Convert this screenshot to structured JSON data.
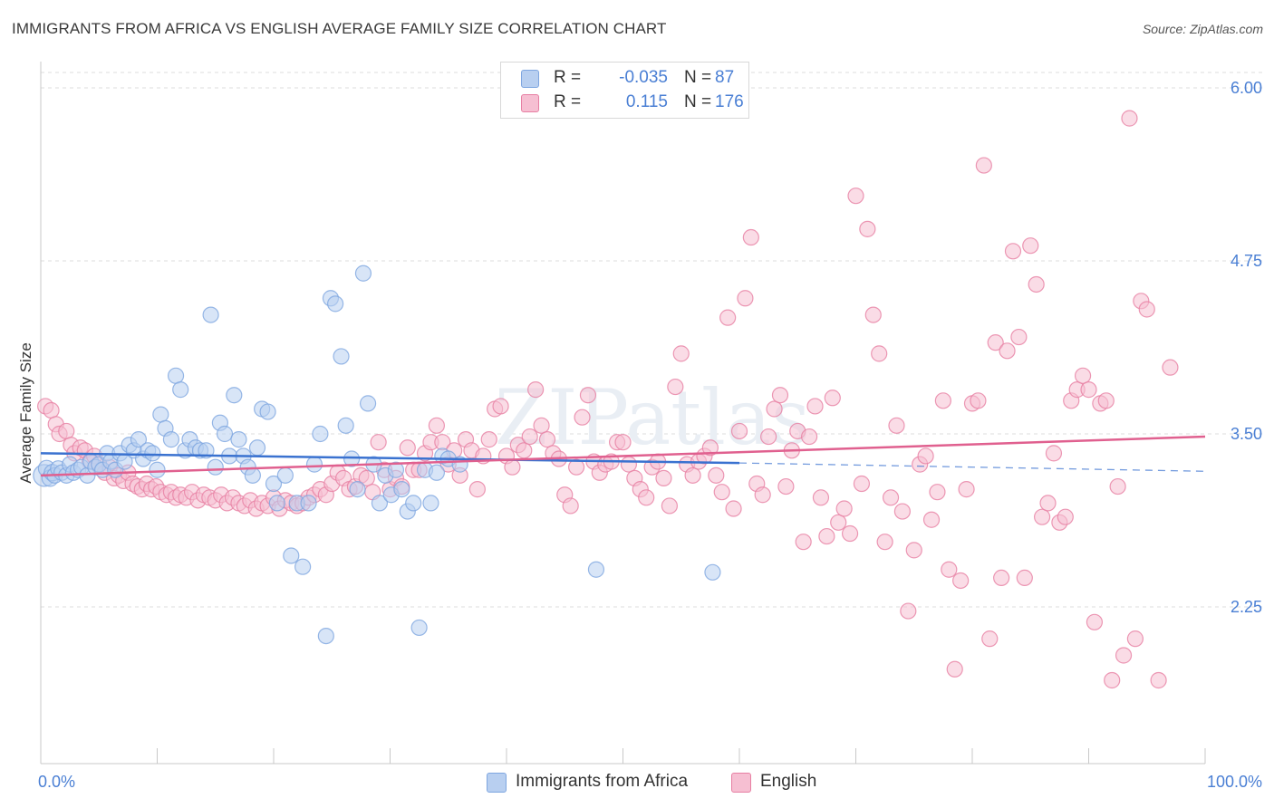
{
  "title": "IMMIGRANTS FROM AFRICA VS ENGLISH AVERAGE FAMILY SIZE CORRELATION CHART",
  "source": "Source: ZipAtlas.com",
  "watermark": "ZIPatlas",
  "legend": {
    "r_label": "R =",
    "n_label": "N =",
    "rows": [
      {
        "r": "-0.035",
        "n": "87"
      },
      {
        "r": "0.115",
        "n": "176"
      }
    ]
  },
  "chart_data": {
    "type": "scatter",
    "title": "IMMIGRANTS FROM AFRICA VS ENGLISH AVERAGE FAMILY SIZE CORRELATION CHART",
    "xlabel": "",
    "ylabel": "Average Family Size",
    "xlim": [
      0,
      100
    ],
    "ylim": [
      1.5,
      6.2
    ],
    "x_tick_labels": [
      "0.0%",
      "100.0%"
    ],
    "y_ticks": [
      2.25,
      3.5,
      4.75,
      6.0
    ],
    "y_tick_labels": [
      "2.25",
      "3.50",
      "4.75",
      "6.00"
    ],
    "grid": true,
    "legend_position": "top-center",
    "series": [
      {
        "name": "Immigrants from Africa",
        "color": "#7ea6e0",
        "fill": "#b8cff0",
        "trend": {
          "x0": 0,
          "y0": 3.36,
          "x1": 60,
          "y1": 3.29,
          "dash_x1": 100,
          "dash_y1": 3.23
        },
        "points": [
          [
            0.3,
            3.2
          ],
          [
            0.5,
            3.25
          ],
          [
            0.8,
            3.18
          ],
          [
            1.0,
            3.22
          ],
          [
            1.2,
            3.2
          ],
          [
            1.5,
            3.25
          ],
          [
            1.8,
            3.22
          ],
          [
            2.2,
            3.2
          ],
          [
            2.5,
            3.28
          ],
          [
            2.8,
            3.22
          ],
          [
            3.2,
            3.24
          ],
          [
            3.5,
            3.26
          ],
          [
            4.0,
            3.2
          ],
          [
            4.3,
            3.3
          ],
          [
            4.7,
            3.26
          ],
          [
            5.0,
            3.28
          ],
          [
            5.3,
            3.24
          ],
          [
            5.7,
            3.36
          ],
          [
            6.0,
            3.3
          ],
          [
            6.4,
            3.24
          ],
          [
            6.8,
            3.36
          ],
          [
            7.2,
            3.3
          ],
          [
            7.6,
            3.42
          ],
          [
            8.0,
            3.38
          ],
          [
            8.4,
            3.46
          ],
          [
            8.8,
            3.32
          ],
          [
            9.2,
            3.38
          ],
          [
            9.6,
            3.36
          ],
          [
            10.0,
            3.24
          ],
          [
            10.3,
            3.64
          ],
          [
            10.7,
            3.54
          ],
          [
            11.2,
            3.46
          ],
          [
            11.6,
            3.92
          ],
          [
            12.0,
            3.82
          ],
          [
            12.4,
            3.38
          ],
          [
            12.8,
            3.46
          ],
          [
            13.3,
            3.4
          ],
          [
            13.7,
            3.38
          ],
          [
            14.2,
            3.38
          ],
          [
            14.6,
            4.36
          ],
          [
            15.0,
            3.26
          ],
          [
            15.4,
            3.58
          ],
          [
            15.8,
            3.5
          ],
          [
            16.2,
            3.34
          ],
          [
            16.6,
            3.78
          ],
          [
            17.0,
            3.46
          ],
          [
            17.4,
            3.34
          ],
          [
            17.8,
            3.26
          ],
          [
            18.2,
            3.2
          ],
          [
            18.6,
            3.4
          ],
          [
            19.0,
            3.68
          ],
          [
            19.5,
            3.66
          ],
          [
            20.0,
            3.14
          ],
          [
            20.3,
            3.0
          ],
          [
            21.0,
            3.2
          ],
          [
            21.5,
            2.62
          ],
          [
            22.0,
            3.0
          ],
          [
            22.5,
            2.54
          ],
          [
            23.0,
            3.0
          ],
          [
            23.5,
            3.28
          ],
          [
            24.0,
            3.5
          ],
          [
            24.5,
            2.04
          ],
          [
            24.9,
            4.48
          ],
          [
            25.3,
            4.44
          ],
          [
            25.8,
            4.06
          ],
          [
            26.2,
            3.56
          ],
          [
            26.7,
            3.32
          ],
          [
            27.2,
            3.1
          ],
          [
            27.7,
            4.66
          ],
          [
            28.1,
            3.72
          ],
          [
            28.6,
            3.28
          ],
          [
            29.1,
            3.0
          ],
          [
            29.6,
            3.2
          ],
          [
            30.1,
            3.06
          ],
          [
            30.5,
            3.24
          ],
          [
            31.0,
            3.1
          ],
          [
            31.5,
            2.94
          ],
          [
            32.0,
            3.0
          ],
          [
            32.5,
            2.1
          ],
          [
            33.0,
            3.24
          ],
          [
            33.5,
            3.0
          ],
          [
            34.0,
            3.22
          ],
          [
            34.5,
            3.34
          ],
          [
            35.0,
            3.32
          ],
          [
            36.0,
            3.28
          ],
          [
            47.7,
            2.52
          ],
          [
            57.7,
            2.5
          ]
        ]
      },
      {
        "name": "English",
        "color": "#e77fa3",
        "fill": "#f6bfd2",
        "trend": {
          "x0": 0,
          "y0": 3.2,
          "x1": 100,
          "y1": 3.48
        },
        "points": [
          [
            0.4,
            3.7
          ],
          [
            0.9,
            3.67
          ],
          [
            1.3,
            3.57
          ],
          [
            1.6,
            3.5
          ],
          [
            2.2,
            3.52
          ],
          [
            2.6,
            3.42
          ],
          [
            2.9,
            3.36
          ],
          [
            3.4,
            3.4
          ],
          [
            3.8,
            3.38
          ],
          [
            4.2,
            3.3
          ],
          [
            4.6,
            3.34
          ],
          [
            5.0,
            3.28
          ],
          [
            5.5,
            3.22
          ],
          [
            5.9,
            3.26
          ],
          [
            6.3,
            3.18
          ],
          [
            6.7,
            3.2
          ],
          [
            7.1,
            3.16
          ],
          [
            7.5,
            3.22
          ],
          [
            7.9,
            3.14
          ],
          [
            8.3,
            3.12
          ],
          [
            8.7,
            3.1
          ],
          [
            9.1,
            3.14
          ],
          [
            9.5,
            3.1
          ],
          [
            9.9,
            3.12
          ],
          [
            10.3,
            3.08
          ],
          [
            10.8,
            3.06
          ],
          [
            11.2,
            3.08
          ],
          [
            11.6,
            3.04
          ],
          [
            12.0,
            3.06
          ],
          [
            12.5,
            3.04
          ],
          [
            13.0,
            3.08
          ],
          [
            13.5,
            3.02
          ],
          [
            14.0,
            3.06
          ],
          [
            14.5,
            3.04
          ],
          [
            15.0,
            3.02
          ],
          [
            15.5,
            3.06
          ],
          [
            16.0,
            3.0
          ],
          [
            16.5,
            3.04
          ],
          [
            17.0,
            3.0
          ],
          [
            17.5,
            2.98
          ],
          [
            18.0,
            3.02
          ],
          [
            18.5,
            2.96
          ],
          [
            19.0,
            3.0
          ],
          [
            19.5,
            2.98
          ],
          [
            20.0,
            3.04
          ],
          [
            20.5,
            2.96
          ],
          [
            21.0,
            3.02
          ],
          [
            21.5,
            3.0
          ],
          [
            22.0,
            2.98
          ],
          [
            22.5,
            3.0
          ],
          [
            23.0,
            3.04
          ],
          [
            23.5,
            3.06
          ],
          [
            24.0,
            3.1
          ],
          [
            24.5,
            3.06
          ],
          [
            25.0,
            3.14
          ],
          [
            25.5,
            3.22
          ],
          [
            26.0,
            3.18
          ],
          [
            26.5,
            3.1
          ],
          [
            27.0,
            3.12
          ],
          [
            27.5,
            3.2
          ],
          [
            28.0,
            3.18
          ],
          [
            28.5,
            3.08
          ],
          [
            29.0,
            3.44
          ],
          [
            29.5,
            3.24
          ],
          [
            30.0,
            3.1
          ],
          [
            30.5,
            3.18
          ],
          [
            31.0,
            3.12
          ],
          [
            31.5,
            3.4
          ],
          [
            32.0,
            3.24
          ],
          [
            32.5,
            3.24
          ],
          [
            33.0,
            3.36
          ],
          [
            33.5,
            3.44
          ],
          [
            34.0,
            3.56
          ],
          [
            34.5,
            3.44
          ],
          [
            35.0,
            3.28
          ],
          [
            35.5,
            3.38
          ],
          [
            36.0,
            3.2
          ],
          [
            36.5,
            3.46
          ],
          [
            37.0,
            3.38
          ],
          [
            37.5,
            3.1
          ],
          [
            38.0,
            3.34
          ],
          [
            38.5,
            3.46
          ],
          [
            39.0,
            3.68
          ],
          [
            39.5,
            3.7
          ],
          [
            40.0,
            3.34
          ],
          [
            40.5,
            3.26
          ],
          [
            41.0,
            3.42
          ],
          [
            41.5,
            3.38
          ],
          [
            42.0,
            3.48
          ],
          [
            42.5,
            3.82
          ],
          [
            43.0,
            3.56
          ],
          [
            43.5,
            3.46
          ],
          [
            44.0,
            3.36
          ],
          [
            44.5,
            3.32
          ],
          [
            45.0,
            3.06
          ],
          [
            45.5,
            2.98
          ],
          [
            46.0,
            3.26
          ],
          [
            46.5,
            3.62
          ],
          [
            47.0,
            3.78
          ],
          [
            47.5,
            3.3
          ],
          [
            48.0,
            3.22
          ],
          [
            48.5,
            3.28
          ],
          [
            49.0,
            3.3
          ],
          [
            49.5,
            3.44
          ],
          [
            50.0,
            3.44
          ],
          [
            50.5,
            3.28
          ],
          [
            51.0,
            3.18
          ],
          [
            51.5,
            3.1
          ],
          [
            52.0,
            3.04
          ],
          [
            52.5,
            3.26
          ],
          [
            53.0,
            3.3
          ],
          [
            53.5,
            3.18
          ],
          [
            54.0,
            2.98
          ],
          [
            54.5,
            3.84
          ],
          [
            55.0,
            4.08
          ],
          [
            55.5,
            3.28
          ],
          [
            56.0,
            3.2
          ],
          [
            56.5,
            3.3
          ],
          [
            57.0,
            3.34
          ],
          [
            57.5,
            3.4
          ],
          [
            58.0,
            3.2
          ],
          [
            58.5,
            3.08
          ],
          [
            59.0,
            4.34
          ],
          [
            59.5,
            2.96
          ],
          [
            60.0,
            3.52
          ],
          [
            60.5,
            4.48
          ],
          [
            61.0,
            4.92
          ],
          [
            61.5,
            3.14
          ],
          [
            62.0,
            3.06
          ],
          [
            62.5,
            3.48
          ],
          [
            63.0,
            3.68
          ],
          [
            63.5,
            3.78
          ],
          [
            64.0,
            3.12
          ],
          [
            64.5,
            3.38
          ],
          [
            65.0,
            3.52
          ],
          [
            65.5,
            2.72
          ],
          [
            66.0,
            3.48
          ],
          [
            66.5,
            3.7
          ],
          [
            67.0,
            3.04
          ],
          [
            67.5,
            2.76
          ],
          [
            68.0,
            3.76
          ],
          [
            68.5,
            2.86
          ],
          [
            69.0,
            2.96
          ],
          [
            69.5,
            2.78
          ],
          [
            70.0,
            5.22
          ],
          [
            70.5,
            3.14
          ],
          [
            71.0,
            4.98
          ],
          [
            71.5,
            4.36
          ],
          [
            72.0,
            4.08
          ],
          [
            72.5,
            2.72
          ],
          [
            73.0,
            3.04
          ],
          [
            73.5,
            3.56
          ],
          [
            74.0,
            2.94
          ],
          [
            74.5,
            2.22
          ],
          [
            75.0,
            2.66
          ],
          [
            75.5,
            3.28
          ],
          [
            76.0,
            3.34
          ],
          [
            76.5,
            2.88
          ],
          [
            77.0,
            3.08
          ],
          [
            77.5,
            3.74
          ],
          [
            78.0,
            2.52
          ],
          [
            78.5,
            1.8
          ],
          [
            79.0,
            2.44
          ],
          [
            79.5,
            3.1
          ],
          [
            80.0,
            3.72
          ],
          [
            80.5,
            3.74
          ],
          [
            81.0,
            5.44
          ],
          [
            81.5,
            2.02
          ],
          [
            82.0,
            4.16
          ],
          [
            82.5,
            2.46
          ],
          [
            83.0,
            4.1
          ],
          [
            83.5,
            4.82
          ],
          [
            84.0,
            4.2
          ],
          [
            84.5,
            2.46
          ],
          [
            85.0,
            4.86
          ],
          [
            85.5,
            4.58
          ],
          [
            86.0,
            2.9
          ],
          [
            86.5,
            3.0
          ],
          [
            87.0,
            3.36
          ],
          [
            87.5,
            2.86
          ],
          [
            88.0,
            2.9
          ],
          [
            88.5,
            3.74
          ],
          [
            89.0,
            3.82
          ],
          [
            89.5,
            3.92
          ],
          [
            90.0,
            3.82
          ],
          [
            90.5,
            2.14
          ],
          [
            91.0,
            3.72
          ],
          [
            91.5,
            3.74
          ],
          [
            92.0,
            1.72
          ],
          [
            92.5,
            3.12
          ],
          [
            93.0,
            1.9
          ],
          [
            93.5,
            5.78
          ],
          [
            94.0,
            2.02
          ],
          [
            94.5,
            4.46
          ],
          [
            95.0,
            4.4
          ],
          [
            96.0,
            1.72
          ],
          [
            97.0,
            3.98
          ]
        ]
      }
    ]
  }
}
